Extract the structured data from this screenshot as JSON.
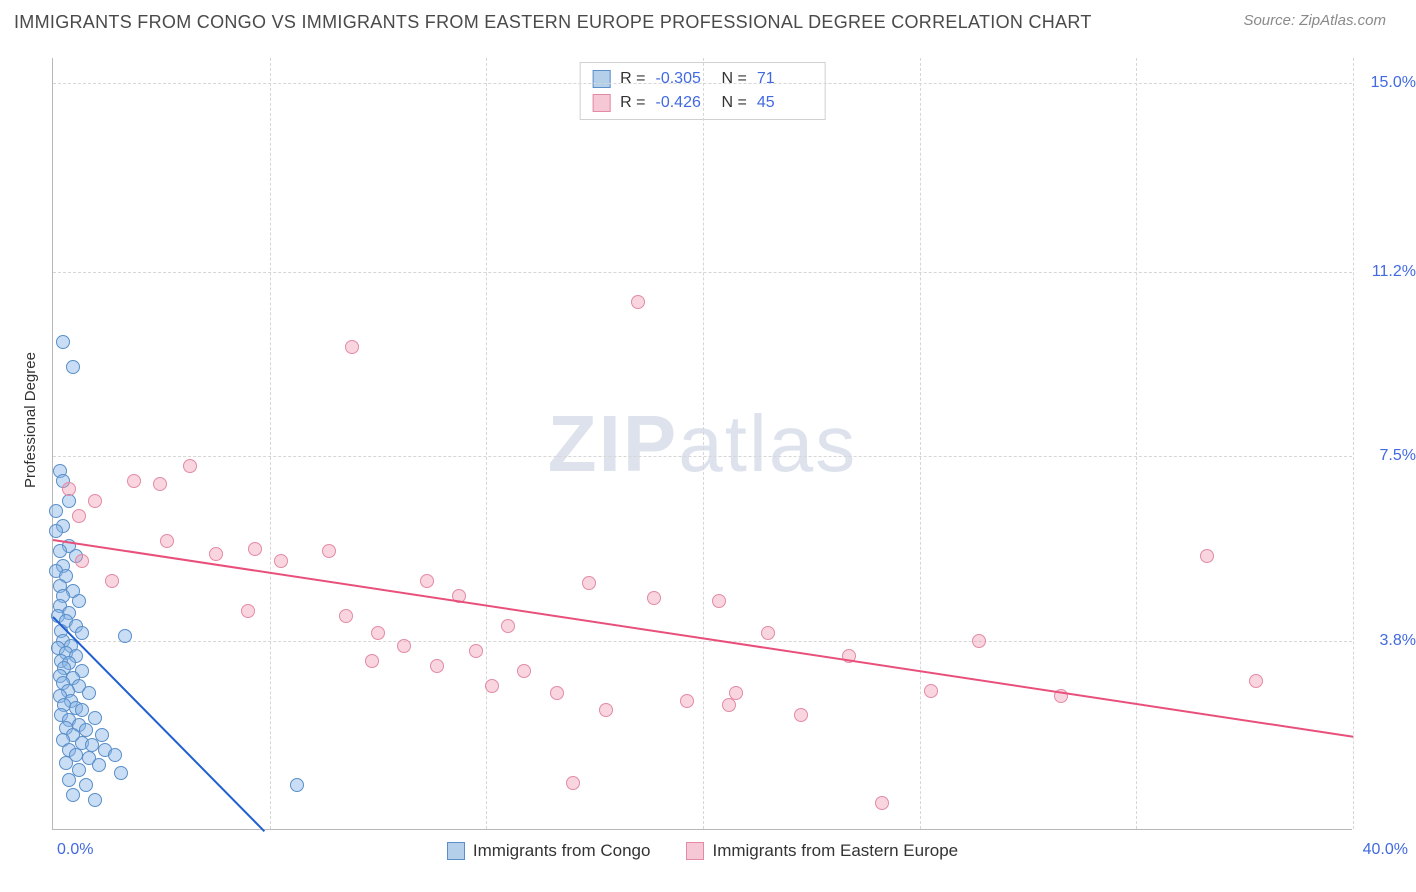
{
  "title": "IMMIGRANTS FROM CONGO VS IMMIGRANTS FROM EASTERN EUROPE PROFESSIONAL DEGREE CORRELATION CHART",
  "source": "Source: ZipAtlas.com",
  "ylabel": "Professional Degree",
  "watermark": {
    "zip": "ZIP",
    "atlas": "atlas"
  },
  "chart": {
    "type": "scatter",
    "xlim": [
      0,
      40
    ],
    "ylim": [
      0,
      15.5
    ],
    "xticks": [
      0,
      40
    ],
    "xtick_labels": [
      "0.0%",
      "40.0%"
    ],
    "vgrid_at": [
      6.67,
      13.33,
      20.0,
      26.67,
      33.33,
      40.0
    ],
    "yticks": [
      3.8,
      7.5,
      11.2,
      15.0
    ],
    "ytick_labels": [
      "3.8%",
      "7.5%",
      "11.2%",
      "15.0%"
    ],
    "background_color": "#ffffff",
    "grid_color": "#d6d6d6",
    "point_radius": 7,
    "series": [
      {
        "name": "Immigrants from Congo",
        "fill": "rgba(135, 180, 230, 0.45)",
        "stroke": "#5a8fc9",
        "swatch_fill": "#b3cfea",
        "swatch_border": "#5a8fc9",
        "R_label": "R =",
        "R": "-0.305",
        "N_label": "N =",
        "N": "71",
        "trend": {
          "x1": 0,
          "y1": 4.3,
          "x2": 6.5,
          "y2": 0,
          "color": "#1f5fd0",
          "width": 2
        },
        "points": [
          [
            0.3,
            9.8
          ],
          [
            0.6,
            9.3
          ],
          [
            0.2,
            7.2
          ],
          [
            0.3,
            7.0
          ],
          [
            0.5,
            6.6
          ],
          [
            0.1,
            6.4
          ],
          [
            0.3,
            6.1
          ],
          [
            0.1,
            6.0
          ],
          [
            0.5,
            5.7
          ],
          [
            0.2,
            5.6
          ],
          [
            0.7,
            5.5
          ],
          [
            0.3,
            5.3
          ],
          [
            0.1,
            5.2
          ],
          [
            0.4,
            5.1
          ],
          [
            0.2,
            4.9
          ],
          [
            0.6,
            4.8
          ],
          [
            0.3,
            4.7
          ],
          [
            0.8,
            4.6
          ],
          [
            0.2,
            4.5
          ],
          [
            0.5,
            4.35
          ],
          [
            0.15,
            4.3
          ],
          [
            0.4,
            4.2
          ],
          [
            0.7,
            4.1
          ],
          [
            0.25,
            4.0
          ],
          [
            0.9,
            3.95
          ],
          [
            2.2,
            3.9
          ],
          [
            0.3,
            3.8
          ],
          [
            0.55,
            3.7
          ],
          [
            0.15,
            3.65
          ],
          [
            0.4,
            3.55
          ],
          [
            0.7,
            3.5
          ],
          [
            0.25,
            3.4
          ],
          [
            0.5,
            3.35
          ],
          [
            0.35,
            3.25
          ],
          [
            0.9,
            3.2
          ],
          [
            0.2,
            3.1
          ],
          [
            0.6,
            3.05
          ],
          [
            0.3,
            2.95
          ],
          [
            0.8,
            2.9
          ],
          [
            0.45,
            2.8
          ],
          [
            1.1,
            2.75
          ],
          [
            0.2,
            2.7
          ],
          [
            0.55,
            2.6
          ],
          [
            0.35,
            2.5
          ],
          [
            0.7,
            2.45
          ],
          [
            0.9,
            2.4
          ],
          [
            0.25,
            2.3
          ],
          [
            1.3,
            2.25
          ],
          [
            0.5,
            2.2
          ],
          [
            0.8,
            2.1
          ],
          [
            0.4,
            2.05
          ],
          [
            1.0,
            2.0
          ],
          [
            0.6,
            1.9
          ],
          [
            1.5,
            1.9
          ],
          [
            0.3,
            1.8
          ],
          [
            0.9,
            1.75
          ],
          [
            1.2,
            1.7
          ],
          [
            0.5,
            1.6
          ],
          [
            1.6,
            1.6
          ],
          [
            0.7,
            1.5
          ],
          [
            1.1,
            1.45
          ],
          [
            1.9,
            1.5
          ],
          [
            0.4,
            1.35
          ],
          [
            1.4,
            1.3
          ],
          [
            0.8,
            1.2
          ],
          [
            2.1,
            1.15
          ],
          [
            0.5,
            1.0
          ],
          [
            1.0,
            0.9
          ],
          [
            7.5,
            0.9
          ],
          [
            0.6,
            0.7
          ],
          [
            1.3,
            0.6
          ]
        ]
      },
      {
        "name": "Immigrants from Eastern Europe",
        "fill": "rgba(240, 150, 175, 0.40)",
        "stroke": "#e38aa4",
        "swatch_fill": "#f6c7d4",
        "swatch_border": "#e38aa4",
        "R_label": "R =",
        "R": "-0.426",
        "N_label": "N =",
        "N": "45",
        "trend": {
          "x1": 0,
          "y1": 5.85,
          "x2": 40,
          "y2": 1.9,
          "color": "#e94f7b",
          "width": 2
        },
        "points": [
          [
            18.0,
            10.6
          ],
          [
            9.2,
            9.7
          ],
          [
            4.2,
            7.3
          ],
          [
            2.5,
            7.0
          ],
          [
            3.3,
            6.95
          ],
          [
            0.5,
            6.85
          ],
          [
            1.3,
            6.6
          ],
          [
            0.8,
            6.3
          ],
          [
            3.5,
            5.8
          ],
          [
            6.2,
            5.65
          ],
          [
            8.5,
            5.6
          ],
          [
            5.0,
            5.55
          ],
          [
            7.0,
            5.4
          ],
          [
            35.5,
            5.5
          ],
          [
            11.5,
            5.0
          ],
          [
            16.5,
            4.95
          ],
          [
            12.5,
            4.7
          ],
          [
            18.5,
            4.65
          ],
          [
            9.0,
            4.3
          ],
          [
            14.0,
            4.1
          ],
          [
            10.0,
            3.95
          ],
          [
            20.5,
            4.6
          ],
          [
            10.8,
            3.7
          ],
          [
            13.0,
            3.6
          ],
          [
            9.8,
            3.4
          ],
          [
            11.8,
            3.3
          ],
          [
            22.0,
            3.95
          ],
          [
            14.5,
            3.2
          ],
          [
            28.5,
            3.8
          ],
          [
            24.5,
            3.5
          ],
          [
            37.0,
            3.0
          ],
          [
            13.5,
            2.9
          ],
          [
            21.0,
            2.75
          ],
          [
            15.5,
            2.75
          ],
          [
            27.0,
            2.8
          ],
          [
            19.5,
            2.6
          ],
          [
            17.0,
            2.4
          ],
          [
            20.8,
            2.5
          ],
          [
            23.0,
            2.3
          ],
          [
            31.0,
            2.7
          ],
          [
            16.0,
            0.95
          ],
          [
            25.5,
            0.55
          ],
          [
            0.9,
            5.4
          ],
          [
            1.8,
            5.0
          ],
          [
            6.0,
            4.4
          ]
        ]
      }
    ]
  }
}
